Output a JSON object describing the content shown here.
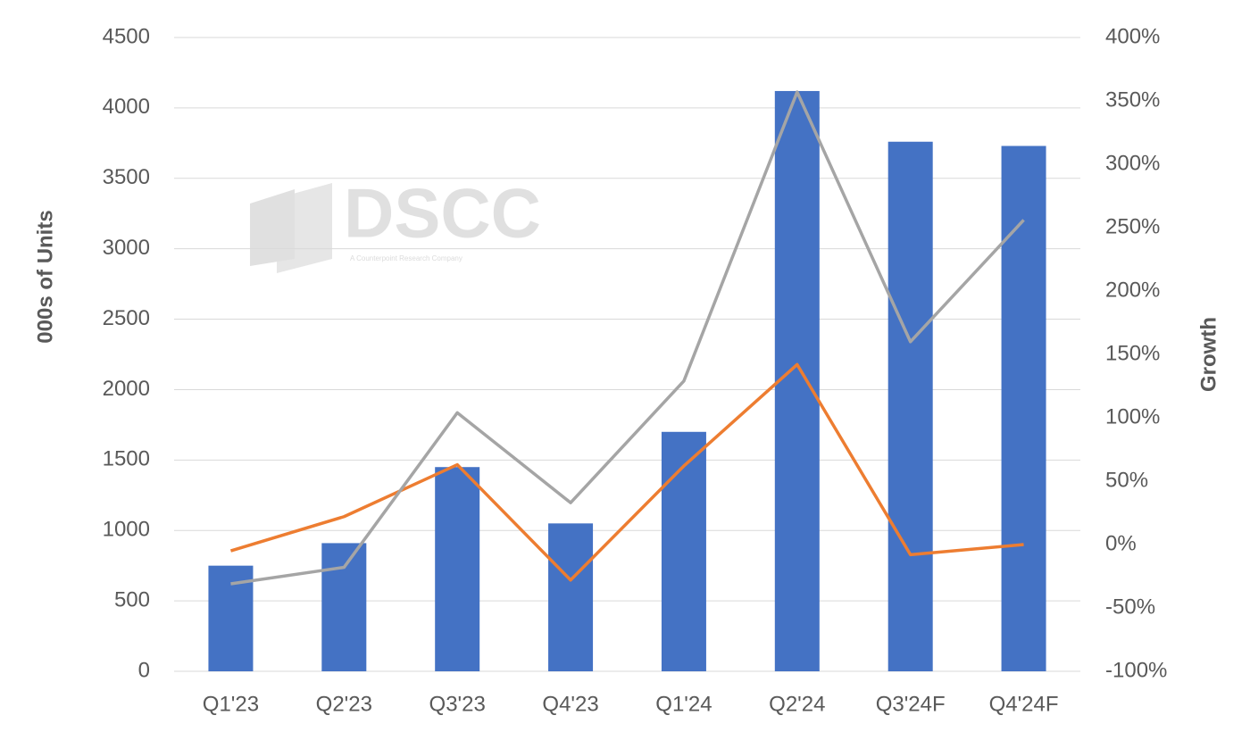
{
  "chart_data": {
    "type": "bar",
    "y_label": "000s of Units",
    "y2_label": "Growth",
    "watermark": {
      "title": "DSCC",
      "subtitle": "A Counterpoint Research Company"
    },
    "categories": [
      "Q1'23",
      "Q2'23",
      "Q3'23",
      "Q4'23",
      "Q1'24",
      "Q2'24",
      "Q3'24F",
      "Q4'24F"
    ],
    "series": [
      {
        "type": "bar",
        "color": "#4472c4",
        "values": [
          750,
          910,
          1450,
          1050,
          1700,
          4120,
          3760,
          3730
        ]
      },
      {
        "type": "line",
        "axis": "y2",
        "color": "#ed7d31",
        "values": [
          -5,
          22,
          63,
          -28,
          62,
          142,
          -8,
          0
        ]
      },
      {
        "type": "line",
        "axis": "y2",
        "color": "#a5a5a5",
        "values": [
          -31,
          -18,
          104,
          33,
          129,
          357,
          160,
          256
        ]
      }
    ],
    "ylim": [
      0,
      4500
    ],
    "yticks": [
      0,
      500,
      1000,
      1500,
      2000,
      2500,
      3000,
      3500,
      4000,
      4500
    ],
    "y2lim": [
      -100,
      400
    ],
    "y2ticks": [
      {
        "value": -100,
        "label": "-100%"
      },
      {
        "value": -50,
        "label": "-50%"
      },
      {
        "value": 0,
        "label": "0%"
      },
      {
        "value": 50,
        "label": "50%"
      },
      {
        "value": 100,
        "label": "100%"
      },
      {
        "value": 150,
        "label": "150%"
      },
      {
        "value": 200,
        "label": "200%"
      },
      {
        "value": 250,
        "label": "250%"
      },
      {
        "value": 300,
        "label": "300%"
      },
      {
        "value": 350,
        "label": "350%"
      },
      {
        "value": 400,
        "label": "400%"
      }
    ],
    "grid": true
  }
}
